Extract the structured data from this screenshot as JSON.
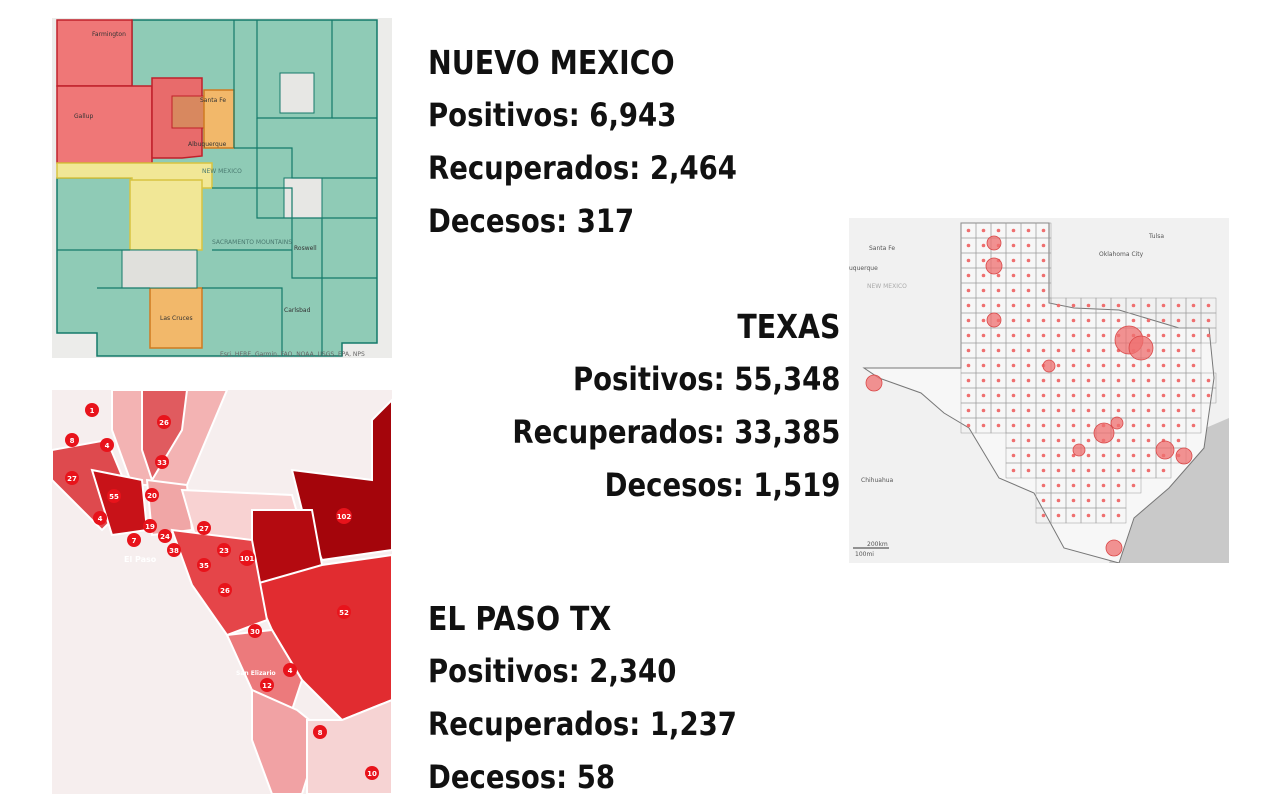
{
  "colors": {
    "nm_high": "#ef6a6a",
    "nm_mid": "#f2b35b",
    "nm_low_yellow": "#f0e58a",
    "nm_green": "#7fc4ae",
    "nm_border": "#147a6a",
    "tx_dot": "#ef6f6f",
    "ep_dark": "#b8070d",
    "ep_mid": "#e4383c",
    "ep_light": "#f3aaaa",
    "marker": "#e8131b"
  },
  "new_mexico": {
    "title": "NUEVO MEXICO",
    "positivos": "Positivos: 6,943",
    "recuperados": "Recuperados: 2,464",
    "decesos": "Decesos: 317",
    "map_labels": {
      "farmington": "Farmington",
      "gallup": "Gallup",
      "santa_fe": "Santa Fe",
      "albuquerque": "Albuquerque",
      "new_mexico": "NEW MEXICO",
      "sacramento": "SACRAMENTO MOUNTAINS",
      "roswell": "Roswell",
      "las_cruces": "Las Cruces",
      "carlsbad": "Carlsbad",
      "attribution": "Esri, HERE, Garmin, FAO, NOAA, USGS, EPA, NPS"
    }
  },
  "texas": {
    "title": "TEXAS",
    "positivos": "Positivos: 55,348",
    "recuperados": "Recuperados: 33,385",
    "decesos": "Decesos: 1,519",
    "map_labels": {
      "santa_fe": "Santa Fe",
      "albuquerque": "uquerque",
      "new_mexico": "NEW MEXICO",
      "oklahoma_city": "Oklahoma City",
      "tulsa": "Tulsa",
      "chihuahua": "Chihuahua",
      "scale_km": "200km",
      "scale_mi": "100mi"
    }
  },
  "el_paso": {
    "title": "EL PASO TX",
    "positivos": "Positivos: 2,340",
    "recuperados": "Recuperados: 1,237",
    "decesos": "Decesos: 58",
    "map_labels": {
      "el_paso": "El Paso",
      "san_elizario": "San Elizario"
    },
    "markers": [
      "1",
      "8",
      "4",
      "26",
      "33",
      "27",
      "55",
      "20",
      "4",
      "7",
      "19",
      "24",
      "38",
      "27",
      "23",
      "101",
      "102",
      "35",
      "26",
      "52",
      "30",
      "4",
      "12",
      "8",
      "10"
    ]
  }
}
